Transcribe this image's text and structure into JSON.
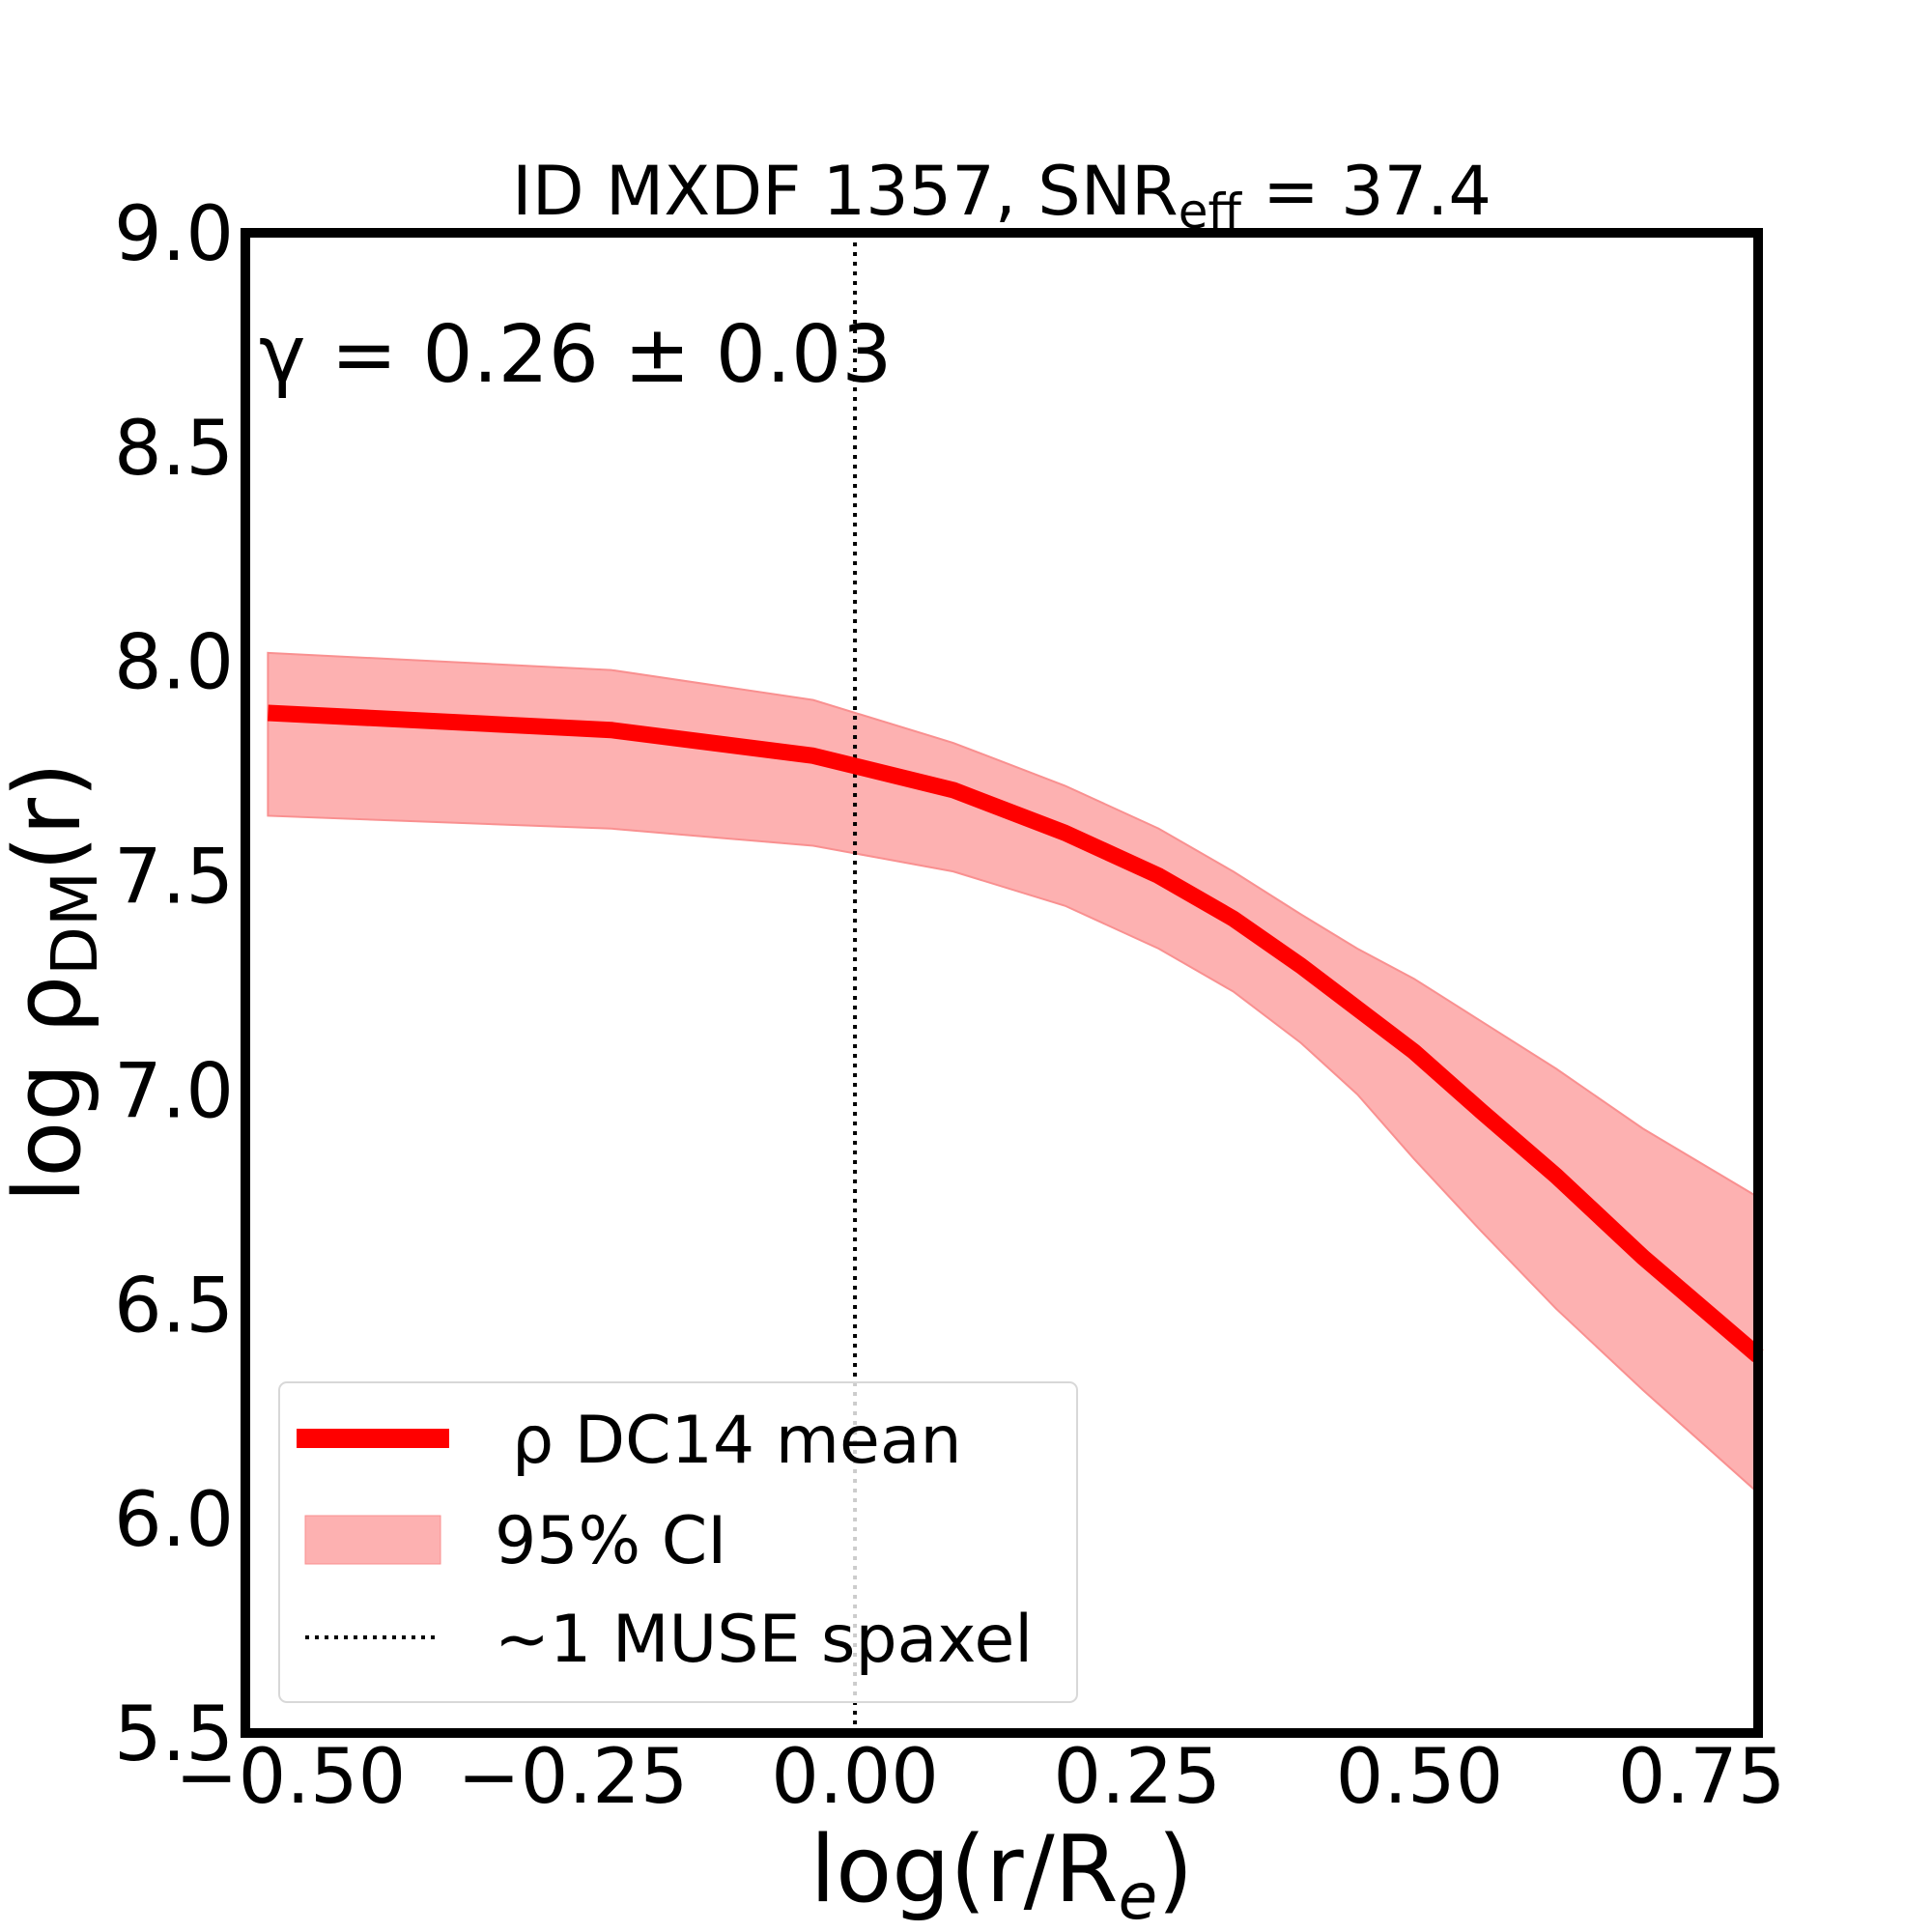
{
  "chart_data": {
    "type": "area",
    "title": "ID MXDF 1357, SNR",
    "title_subscript": "eff",
    "title_suffix": " = 37.4",
    "xlabel": "log(r/R",
    "xlabel_subscript": "e",
    "xlabel_suffix": ")",
    "ylabel": "log ρ",
    "ylabel_subscript": "DM",
    "ylabel_suffix": "(r)",
    "xlim": [
      -0.54,
      0.8
    ],
    "ylim": [
      5.5,
      9.0
    ],
    "xticks": [
      -0.5,
      -0.25,
      0.0,
      0.25,
      0.5,
      0.75
    ],
    "xtick_labels": [
      "−0.50",
      "−0.25",
      "0.00",
      "0.25",
      "0.50",
      "0.75"
    ],
    "yticks": [
      5.5,
      6.0,
      6.5,
      7.0,
      7.5,
      8.0,
      8.5,
      9.0
    ],
    "ytick_labels": [
      "5.5",
      "6.0",
      "6.5",
      "7.0",
      "7.5",
      "8.0",
      "8.5",
      "9.0"
    ],
    "grid": false,
    "annotation": "γ = 0.26 ± 0.03",
    "vline_x": 0.0,
    "legend_position": "lower-left",
    "colors": {
      "mean": "#ff0000",
      "ci": "#fdb1b1",
      "ci_edge": "#f99090",
      "vline": "#000000"
    },
    "x": [
      -0.52,
      -0.216,
      -0.037,
      0.087,
      0.186,
      0.269,
      0.335,
      0.395,
      0.445,
      0.495,
      0.555,
      0.621,
      0.698,
      0.8
    ],
    "series": [
      {
        "name": "ρ DC14 mean",
        "values": [
          7.88,
          7.84,
          7.78,
          7.7,
          7.6,
          7.5,
          7.4,
          7.29,
          7.19,
          7.09,
          6.95,
          6.8,
          6.61,
          6.38
        ]
      },
      {
        "name": "95% CI",
        "upper": [
          8.02,
          7.98,
          7.91,
          7.81,
          7.71,
          7.61,
          7.51,
          7.41,
          7.33,
          7.26,
          7.16,
          7.05,
          6.91,
          6.75
        ],
        "lower": [
          7.64,
          7.61,
          7.57,
          7.51,
          7.43,
          7.33,
          7.23,
          7.11,
          6.99,
          6.84,
          6.67,
          6.49,
          6.3,
          6.06
        ]
      },
      {
        "name": "~1 MUSE spaxel"
      }
    ]
  }
}
